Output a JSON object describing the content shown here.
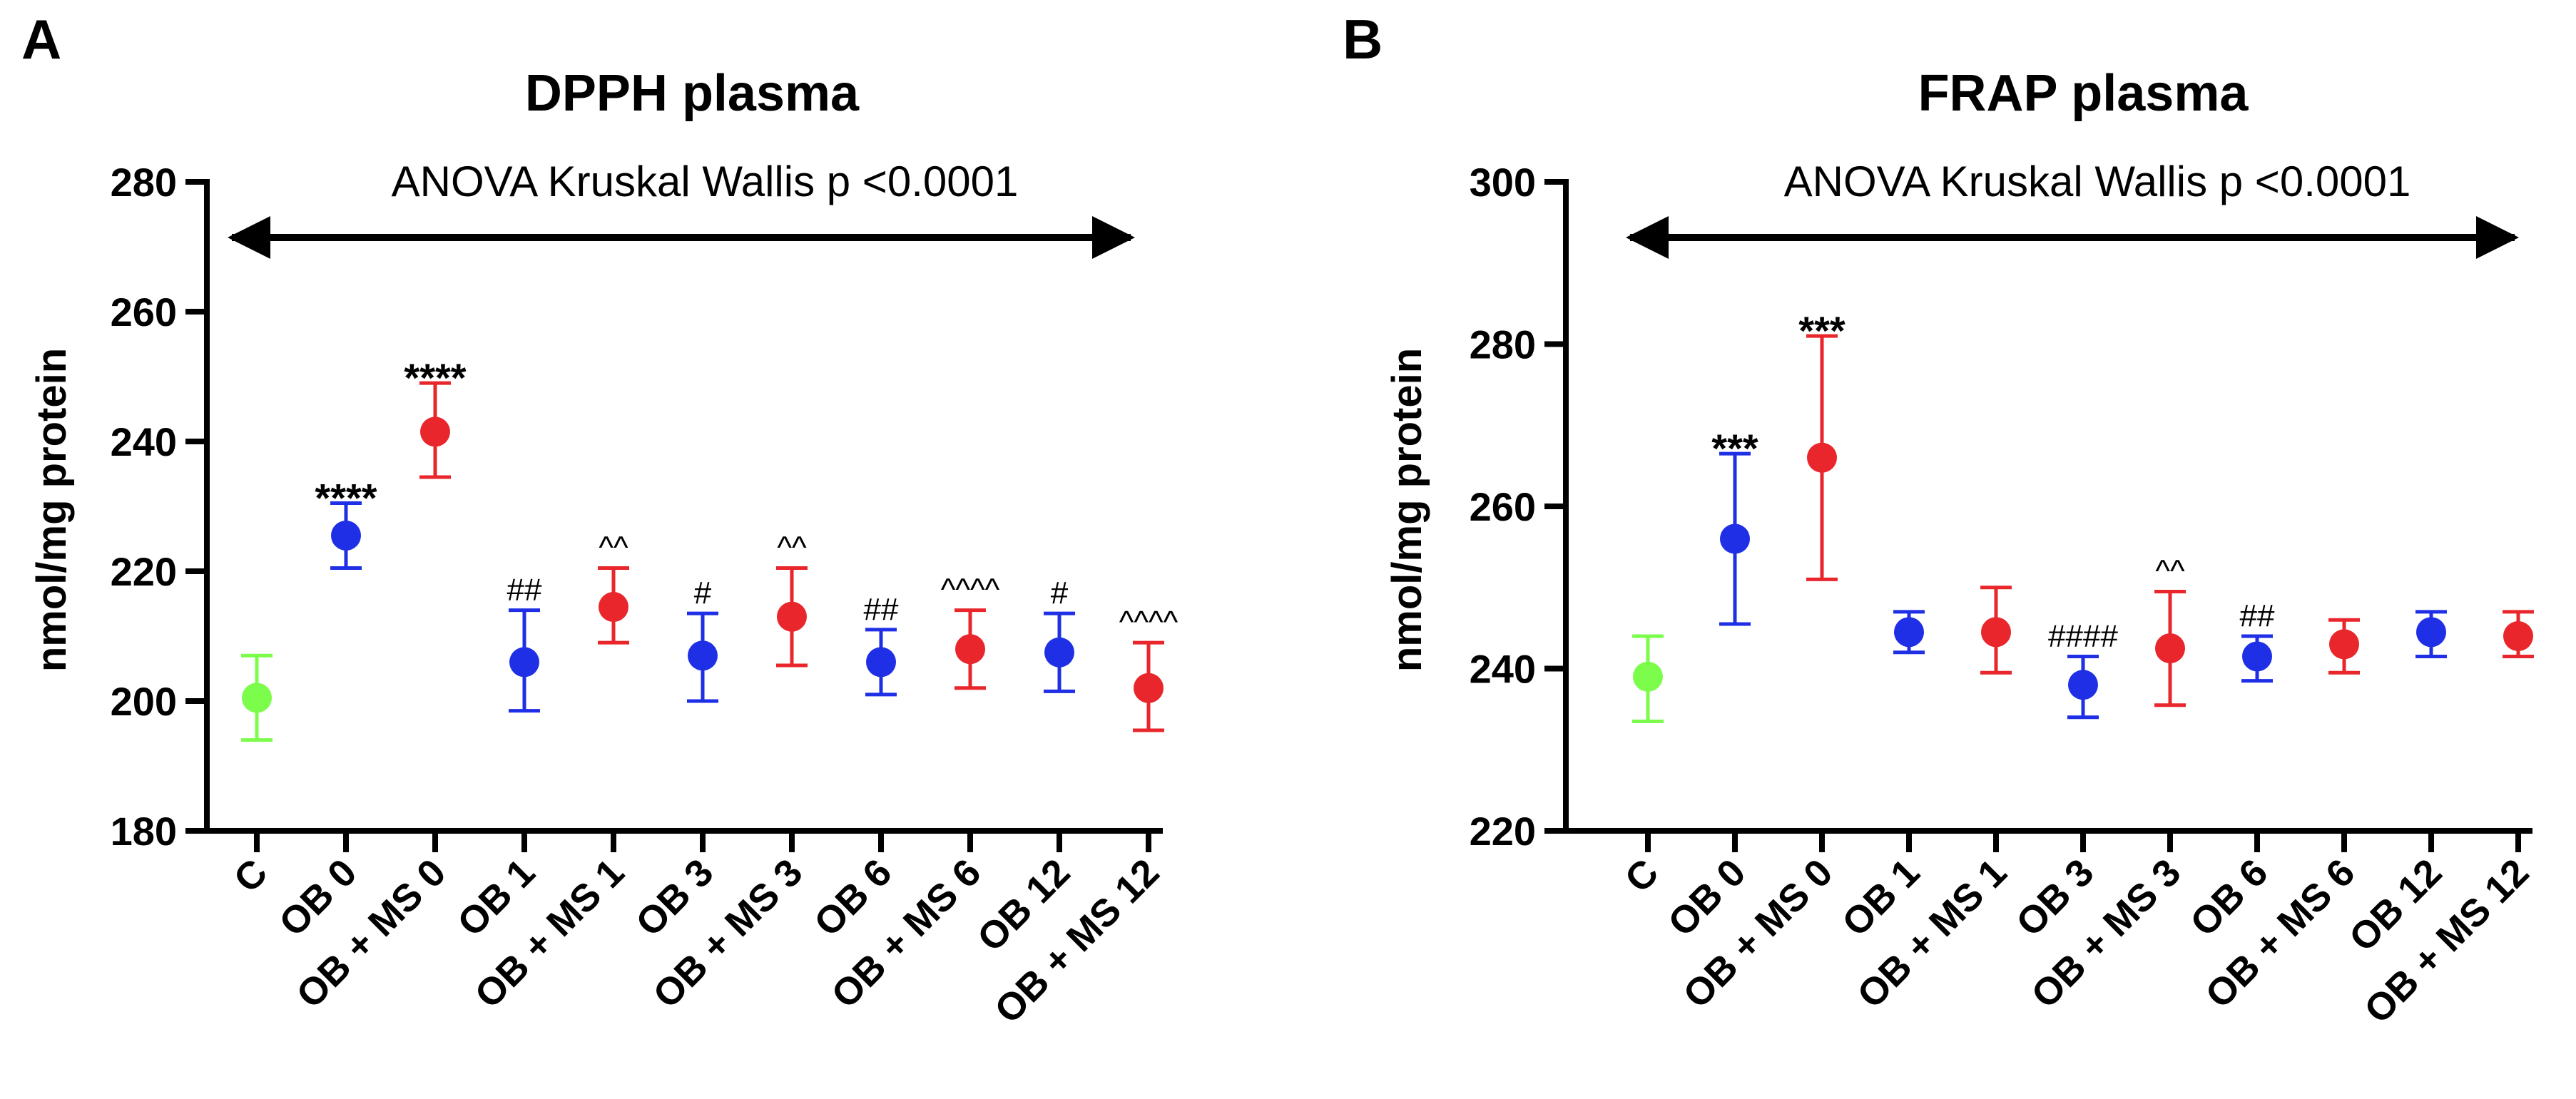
{
  "chart_data": [
    {
      "panel_label": "A",
      "type": "scatter",
      "title": "DPPH plasma",
      "annotation": "ANOVA Kruskal Wallis p <0.0001",
      "ylabel": "nmol/mg protein",
      "ylim": [
        180,
        280
      ],
      "yticks": [
        180,
        200,
        220,
        240,
        260,
        280
      ],
      "categories": [
        "C",
        "OB 0",
        "OB + MS 0",
        "OB 1",
        "OB + MS 1",
        "OB 3",
        "OB + MS 3",
        "OB 6",
        "OB + MS 6",
        "OB 12",
        "OB + MS 12"
      ],
      "points": [
        {
          "category": "C",
          "mean": 200.5,
          "low": 194,
          "high": 207,
          "color": "#7CFC4B",
          "sig": ""
        },
        {
          "category": "OB 0",
          "mean": 225.5,
          "low": 220.5,
          "high": 230.5,
          "color": "#1F2FE6",
          "sig": "****"
        },
        {
          "category": "OB + MS 0",
          "mean": 241.5,
          "low": 234.5,
          "high": 249,
          "color": "#E8262B",
          "sig": "****"
        },
        {
          "category": "OB 1",
          "mean": 206,
          "low": 198.5,
          "high": 214,
          "color": "#1F2FE6",
          "sig": "##"
        },
        {
          "category": "OB + MS 1",
          "mean": 214.5,
          "low": 209,
          "high": 220.5,
          "color": "#E8262B",
          "sig": "^^"
        },
        {
          "category": "OB 3",
          "mean": 207,
          "low": 200,
          "high": 213.5,
          "color": "#1F2FE6",
          "sig": "#"
        },
        {
          "category": "OB + MS 3",
          "mean": 213,
          "low": 205.5,
          "high": 220.5,
          "color": "#E8262B",
          "sig": "^^"
        },
        {
          "category": "OB 6",
          "mean": 206,
          "low": 201,
          "high": 211,
          "color": "#1F2FE6",
          "sig": "##"
        },
        {
          "category": "OB + MS 6",
          "mean": 208,
          "low": 202,
          "high": 214,
          "color": "#E8262B",
          "sig": "^^^^"
        },
        {
          "category": "OB 12",
          "mean": 207.5,
          "low": 201.5,
          "high": 213.5,
          "color": "#1F2FE6",
          "sig": "#"
        },
        {
          "category": "OB + MS 12",
          "mean": 202,
          "low": 195.5,
          "high": 209,
          "color": "#E8262B",
          "sig": "^^^^"
        }
      ]
    },
    {
      "panel_label": "B",
      "type": "scatter",
      "title": "FRAP plasma",
      "annotation": "ANOVA Kruskal Wallis p <0.0001",
      "ylabel": "nmol/mg protein",
      "ylim": [
        220,
        300
      ],
      "yticks": [
        220,
        240,
        260,
        280,
        300
      ],
      "categories": [
        "C",
        "OB 0",
        "OB + MS 0",
        "OB 1",
        "OB + MS 1",
        "OB 3",
        "OB + MS 3",
        "OB 6",
        "OB + MS 6",
        "OB 12",
        "OB + MS 12"
      ],
      "points": [
        {
          "category": "C",
          "mean": 239,
          "low": 233.5,
          "high": 244,
          "color": "#7CFC4B",
          "sig": ""
        },
        {
          "category": "OB 0",
          "mean": 256,
          "low": 245.5,
          "high": 266.5,
          "color": "#1F2FE6",
          "sig": "***"
        },
        {
          "category": "OB + MS 0",
          "mean": 266,
          "low": 251,
          "high": 281,
          "color": "#E8262B",
          "sig": "***"
        },
        {
          "category": "OB 1",
          "mean": 244.5,
          "low": 242,
          "high": 247,
          "color": "#1F2FE6",
          "sig": ""
        },
        {
          "category": "OB + MS 1",
          "mean": 244.5,
          "low": 239.5,
          "high": 250,
          "color": "#E8262B",
          "sig": ""
        },
        {
          "category": "OB 3",
          "mean": 238,
          "low": 234,
          "high": 241.5,
          "color": "#1F2FE6",
          "sig": "####"
        },
        {
          "category": "OB + MS 3",
          "mean": 242.5,
          "low": 235.5,
          "high": 249.5,
          "color": "#E8262B",
          "sig": "^^"
        },
        {
          "category": "OB 6",
          "mean": 241.5,
          "low": 238.5,
          "high": 244,
          "color": "#1F2FE6",
          "sig": "##"
        },
        {
          "category": "OB + MS 6",
          "mean": 243,
          "low": 239.5,
          "high": 246,
          "color": "#E8262B",
          "sig": ""
        },
        {
          "category": "OB 12",
          "mean": 244.5,
          "low": 241.5,
          "high": 247,
          "color": "#1F2FE6",
          "sig": ""
        },
        {
          "category": "OB + MS 12",
          "mean": 244,
          "low": 241.5,
          "high": 247,
          "color": "#E8262B",
          "sig": ""
        }
      ]
    }
  ]
}
